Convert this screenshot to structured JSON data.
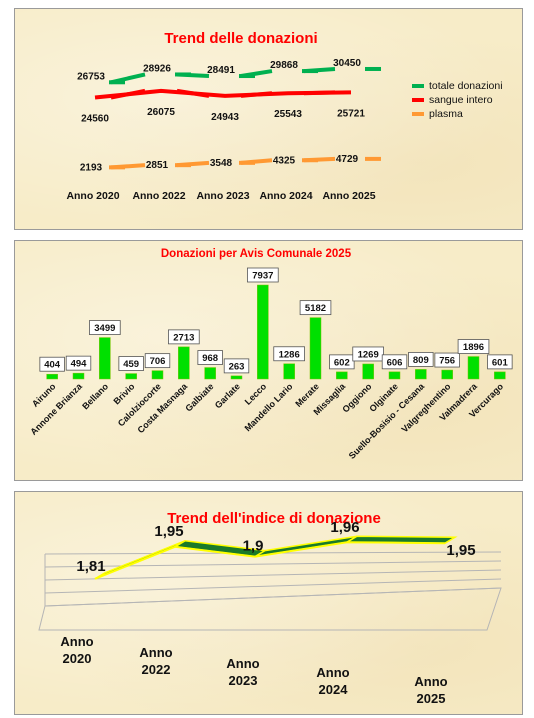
{
  "chart_data": [
    {
      "type": "line",
      "title": "Trend delle donazioni",
      "categories": [
        "Anno 2020",
        "Anno 2022",
        "Anno 2023",
        "Anno 2024",
        "Anno 2025"
      ],
      "series": [
        {
          "name": "totale donazioni",
          "values": [
            26753,
            28926,
            28491,
            29868,
            30450
          ],
          "color": "#00b050"
        },
        {
          "name": "sangue intero",
          "values": [
            24560,
            26075,
            24943,
            25543,
            25721
          ],
          "color": "#ff0000"
        },
        {
          "name": "plasma",
          "values": [
            2193,
            2851,
            3548,
            4325,
            4729
          ],
          "color": "#ff9933"
        }
      ],
      "data_labels": true,
      "legend": "right",
      "grid": false
    },
    {
      "type": "bar",
      "title": "Donazioni per Avis Comunale 2025",
      "categories": [
        "Airuno",
        "Annone Brianza",
        "Bellano",
        "Brivio",
        "Calolziocorte",
        "Costa Masnaga",
        "Galbiate",
        "Garlate",
        "Lecco",
        "Mandello Lario",
        "Merate",
        "Missaglia",
        "Oggiono",
        "Olginate",
        "Suello-Bosisio - Cesana",
        "Valgreghentino",
        "Valmadrera",
        "Vercurago"
      ],
      "values": [
        404,
        494,
        3499,
        459,
        706,
        2713,
        968,
        263,
        7937,
        1286,
        5182,
        602,
        1269,
        606,
        809,
        756,
        1896,
        601
      ],
      "bar_color": "#00e000",
      "data_labels": true,
      "grid": false
    },
    {
      "type": "line",
      "title": "Trend dell'indice di donazione",
      "categories": [
        "Anno 2020",
        "Anno 2022",
        "Anno 2023",
        "Anno 2024",
        "Anno 2025"
      ],
      "values": [
        1.81,
        1.95,
        1.9,
        1.96,
        1.95
      ],
      "value_labels": [
        "1,81",
        "1,95",
        "1,9",
        "1,96",
        "1,95"
      ],
      "line_color": "#1a7a2a",
      "edge_color": "#ffff00",
      "style": "3d-ribbon",
      "grid": true
    }
  ]
}
